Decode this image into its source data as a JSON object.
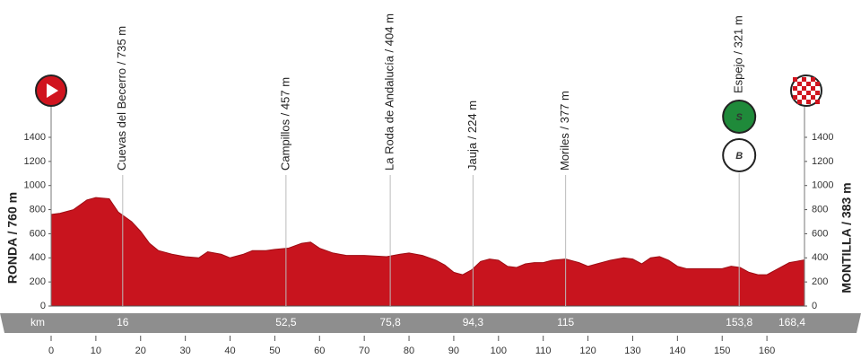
{
  "chart_data": {
    "type": "area",
    "x_unit": "km",
    "start_label": "RONDA / 760 m",
    "finish_label": "MONTILLA / 383 m",
    "color": "#c8141e",
    "x": [
      0,
      2,
      5,
      8,
      10,
      13,
      15,
      18,
      20,
      22,
      24,
      27,
      30,
      33,
      35,
      38,
      40,
      43,
      45,
      48,
      50,
      53,
      56,
      58,
      60,
      63,
      66,
      70,
      75,
      78,
      80,
      83,
      86,
      88,
      90,
      92,
      94,
      96,
      98,
      100,
      102,
      104,
      106,
      108,
      110,
      112,
      115,
      118,
      120,
      122,
      125,
      128,
      130,
      132,
      134,
      136,
      138,
      140,
      142,
      145,
      150,
      152,
      154,
      156,
      158,
      160,
      162,
      165,
      168.4
    ],
    "values": [
      760,
      770,
      800,
      880,
      900,
      890,
      780,
      700,
      620,
      520,
      460,
      430,
      410,
      400,
      450,
      430,
      400,
      430,
      460,
      460,
      470,
      480,
      520,
      530,
      480,
      440,
      420,
      420,
      410,
      430,
      440,
      420,
      380,
      340,
      280,
      260,
      300,
      370,
      390,
      380,
      330,
      320,
      350,
      360,
      360,
      380,
      390,
      360,
      330,
      350,
      380,
      400,
      390,
      350,
      400,
      410,
      380,
      330,
      310,
      310,
      310,
      330,
      320,
      280,
      260,
      260,
      300,
      360,
      383
    ],
    "xlim": [
      0,
      168.4
    ],
    "ylim": [
      0,
      1400
    ],
    "xticks": [
      0,
      10,
      20,
      30,
      40,
      50,
      60,
      70,
      80,
      90,
      100,
      110,
      120,
      130,
      140,
      150,
      160
    ],
    "yticks": [
      0,
      200,
      400,
      600,
      800,
      1000,
      1200,
      1400
    ],
    "waypoints": [
      {
        "name": "Cuevas del Becerro / 735 m",
        "km": 16
      },
      {
        "name": "Campillos / 457 m",
        "km": {
          "value": 52.5,
          "label": "52,5"
        }
      },
      {
        "name": "La Roda de Andalucía / 404 m",
        "km": {
          "value": 75.8,
          "label": "75,8"
        }
      },
      {
        "name": "Jauja / 224 m",
        "km": {
          "value": 94.3,
          "label": "94,3"
        }
      },
      {
        "name": "Moriles / 377 m",
        "km": 115
      },
      {
        "name": "Espejo / 321 m",
        "km": {
          "value": 153.8,
          "label": "153,8"
        },
        "badges": [
          "S",
          "B"
        ]
      }
    ],
    "finish_km": {
      "value": 168.4,
      "label": "168,4"
    }
  }
}
